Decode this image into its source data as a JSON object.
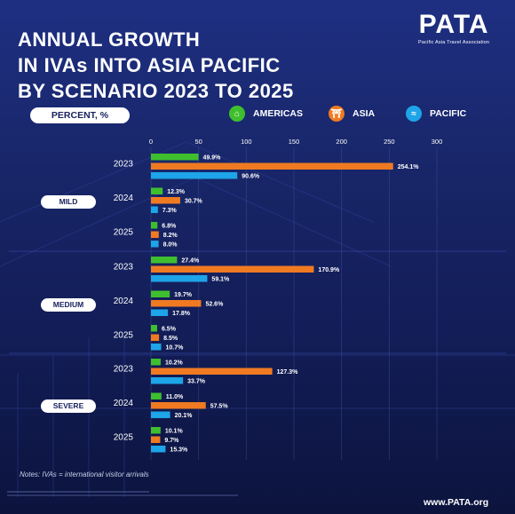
{
  "header": {
    "title_lines": [
      "ANNUAL GROWTH",
      "IN IVAs INTO ASIA PACIFIC",
      "BY SCENARIO 2023 TO 2025"
    ],
    "logo_text": "PATA",
    "logo_subtitle": "Pacific Asia Travel Association"
  },
  "unit_label": "PERCENT, %",
  "footer": {
    "notes": "Notes: IVAs = international visitor arrivals",
    "url": "www.PATA.org"
  },
  "colors": {
    "americas": "#3fbf2e",
    "asia": "#f07a22",
    "pacific": "#1ea4e8",
    "background": "#14215e",
    "pill": "#ffffff"
  },
  "icons": {
    "americas": "americas-region-icon",
    "asia": "asia-region-icon",
    "pacific": "pacific-region-icon"
  },
  "chart_data": {
    "type": "bar",
    "orientation": "horizontal",
    "title": "ANNUAL GROWTH IN IVAs INTO ASIA PACIFIC BY SCENARIO 2023 TO 2025",
    "xlabel": "PERCENT, %",
    "xlim": [
      0,
      300
    ],
    "x_ticks": [
      0,
      50,
      100,
      150,
      200,
      250,
      300
    ],
    "legend": [
      "AMERICAS",
      "ASIA",
      "PACIFIC"
    ],
    "legend_position": "top",
    "grid": true,
    "groups": [
      {
        "scenario": "MILD",
        "years": [
          {
            "year": "2023",
            "values": {
              "AMERICAS": 49.9,
              "ASIA": 254.1,
              "PACIFIC": 90.6
            },
            "labels": {
              "AMERICAS": "49.9%",
              "ASIA": "254.1%",
              "PACIFIC": "90.6%"
            }
          },
          {
            "year": "2024",
            "values": {
              "AMERICAS": 12.3,
              "ASIA": 30.7,
              "PACIFIC": 7.3
            },
            "labels": {
              "AMERICAS": "12.3%",
              "ASIA": "30.7%",
              "PACIFIC": "7.3%"
            }
          },
          {
            "year": "2025",
            "values": {
              "AMERICAS": 6.8,
              "ASIA": 8.2,
              "PACIFIC": 8.0
            },
            "labels": {
              "AMERICAS": "6.8%",
              "ASIA": "8.2%",
              "PACIFIC": "8.0%"
            }
          }
        ]
      },
      {
        "scenario": "MEDIUM",
        "years": [
          {
            "year": "2023",
            "values": {
              "AMERICAS": 27.4,
              "ASIA": 170.9,
              "PACIFIC": 59.1
            },
            "labels": {
              "AMERICAS": "27.4%",
              "ASIA": "170.9%",
              "PACIFIC": "59.1%"
            }
          },
          {
            "year": "2024",
            "values": {
              "AMERICAS": 19.7,
              "ASIA": 52.6,
              "PACIFIC": 17.8
            },
            "labels": {
              "AMERICAS": "19.7%",
              "ASIA": "52.6%",
              "PACIFIC": "17.8%"
            }
          },
          {
            "year": "2025",
            "values": {
              "AMERICAS": 6.5,
              "ASIA": 8.5,
              "PACIFIC": 10.7
            },
            "labels": {
              "AMERICAS": "6.5%",
              "ASIA": "8.5%",
              "PACIFIC": "10.7%"
            }
          }
        ]
      },
      {
        "scenario": "SEVERE",
        "years": [
          {
            "year": "2023",
            "values": {
              "AMERICAS": 10.2,
              "ASIA": 127.3,
              "PACIFIC": 33.7
            },
            "labels": {
              "AMERICAS": "10.2%",
              "ASIA": "127.3%",
              "PACIFIC": "33.7%"
            }
          },
          {
            "year": "2024",
            "values": {
              "AMERICAS": 11.0,
              "ASIA": 57.5,
              "PACIFIC": 20.1
            },
            "labels": {
              "AMERICAS": "11.0%",
              "ASIA": "57.5%",
              "PACIFIC": "20.1%"
            }
          },
          {
            "year": "2025",
            "values": {
              "AMERICAS": 10.1,
              "ASIA": 9.7,
              "PACIFIC": 15.3
            },
            "labels": {
              "AMERICAS": "10.1%",
              "ASIA": "9.7%",
              "PACIFIC": "15.3%"
            }
          }
        ]
      }
    ]
  }
}
